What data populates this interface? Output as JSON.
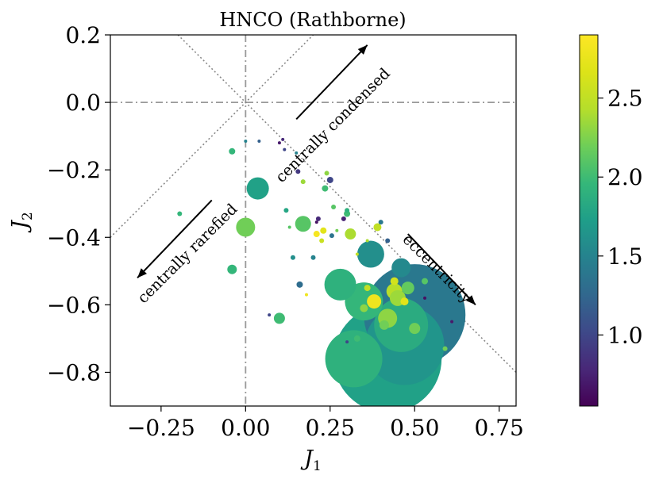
{
  "chart_data": {
    "type": "scatter",
    "title": "HNCO (Rathborne)",
    "xlabel": "J",
    "xlabel_sub": "1",
    "ylabel": "J",
    "ylabel_sub": "2",
    "xlim": [
      -0.4,
      0.8
    ],
    "ylim": [
      -0.9,
      0.2
    ],
    "x_ticks": [
      -0.25,
      0.0,
      0.25,
      0.5,
      0.75
    ],
    "x_tick_labels": [
      "−0.25",
      "0.00",
      "0.25",
      "0.50",
      "0.75"
    ],
    "y_ticks": [
      0.2,
      0.0,
      -0.2,
      -0.4,
      -0.6,
      -0.8
    ],
    "y_tick_labels": [
      "0.2",
      "0.0",
      "−0.2",
      "−0.4",
      "−0.6",
      "−0.8"
    ],
    "colorbar": {
      "range": [
        0.55,
        2.9
      ],
      "ticks": [
        1.0,
        1.5,
        2.0,
        2.5
      ],
      "tick_labels": [
        "1.0",
        "1.5",
        "2.0",
        "2.5"
      ]
    },
    "annotations": [
      {
        "text": "centrally condensed",
        "name": "annotation-centrally-condensed"
      },
      {
        "text": "centrally rarefied",
        "name": "annotation-centrally-rarefied"
      },
      {
        "text": "eccentricity",
        "name": "annotation-eccentricity"
      }
    ],
    "points": [
      {
        "x": 0.42,
        "y": -0.76,
        "size": 68,
        "color": 1.75
      },
      {
        "x": 0.5,
        "y": -0.63,
        "size": 64,
        "color": 1.4
      },
      {
        "x": 0.47,
        "y": -0.72,
        "size": 50,
        "color": 1.65
      },
      {
        "x": 0.32,
        "y": -0.76,
        "size": 36,
        "color": 1.9
      },
      {
        "x": 0.46,
        "y": -0.66,
        "size": 34,
        "color": 1.85
      },
      {
        "x": 0.35,
        "y": -0.59,
        "size": 24,
        "color": 1.95
      },
      {
        "x": 0.28,
        "y": -0.54,
        "size": 20,
        "color": 1.9
      },
      {
        "x": 0.37,
        "y": -0.45,
        "size": 17,
        "color": 1.6
      },
      {
        "x": 0.46,
        "y": -0.49,
        "size": 12,
        "color": 1.55
      },
      {
        "x": 0.42,
        "y": -0.64,
        "size": 12,
        "color": 2.3
      },
      {
        "x": 0.036,
        "y": -0.255,
        "size": 14,
        "color": 1.75
      },
      {
        "x": 0.0,
        "y": -0.37,
        "size": 12,
        "color": 2.2
      },
      {
        "x": 0.17,
        "y": -0.36,
        "size": 10,
        "color": 2.1
      },
      {
        "x": 0.44,
        "y": -0.56,
        "size": 10,
        "color": 2.45
      },
      {
        "x": 0.45,
        "y": -0.58,
        "size": 10,
        "color": 2.35
      },
      {
        "x": 0.48,
        "y": -0.55,
        "size": 8,
        "color": 2.15
      },
      {
        "x": 0.38,
        "y": -0.59,
        "size": 9,
        "color": 2.8
      },
      {
        "x": 0.31,
        "y": -0.39,
        "size": 7,
        "color": 2.4
      },
      {
        "x": 0.1,
        "y": -0.64,
        "size": 7,
        "color": 2.0
      },
      {
        "x": -0.04,
        "y": -0.495,
        "size": 6,
        "color": 1.95
      },
      {
        "x": 0.41,
        "y": -0.66,
        "size": 6,
        "color": 2.2
      },
      {
        "x": 0.39,
        "y": -0.37,
        "size": 5,
        "color": 2.5
      },
      {
        "x": 0.5,
        "y": -0.67,
        "size": 7,
        "color": 2.2
      },
      {
        "x": 0.44,
        "y": -0.53,
        "size": 5,
        "color": 2.6
      },
      {
        "x": 0.35,
        "y": -0.61,
        "size": 5,
        "color": 2.3
      },
      {
        "x": 0.53,
        "y": -0.53,
        "size": 4,
        "color": 2.1
      },
      {
        "x": 0.33,
        "y": -0.7,
        "size": 4,
        "color": 2.0
      },
      {
        "x": 0.59,
        "y": -0.73,
        "size": 3,
        "color": 2.2
      },
      {
        "x": 0.47,
        "y": -0.59,
        "size": 5,
        "color": 2.7
      },
      {
        "x": 0.36,
        "y": -0.55,
        "size": 4,
        "color": 2.5
      },
      {
        "x": 0.3,
        "y": -0.33,
        "size": 4,
        "color": 2.0
      },
      {
        "x": 0.21,
        "y": -0.39,
        "size": 4,
        "color": 2.85
      },
      {
        "x": 0.23,
        "y": -0.38,
        "size": 4,
        "color": 2.7
      },
      {
        "x": 0.225,
        "y": -0.41,
        "size": 3,
        "color": 2.55
      },
      {
        "x": 0.2,
        "y": -0.46,
        "size": 3,
        "color": 1.5
      },
      {
        "x": 0.16,
        "y": -0.54,
        "size": 4,
        "color": 1.3
      },
      {
        "x": 0.17,
        "y": -0.235,
        "size": 3,
        "color": 2.35
      },
      {
        "x": 0.235,
        "y": -0.255,
        "size": 4,
        "color": 2.0
      },
      {
        "x": 0.24,
        "y": -0.21,
        "size": 3,
        "color": 2.3
      },
      {
        "x": 0.25,
        "y": -0.23,
        "size": 4,
        "color": 1.0
      },
      {
        "x": 0.3,
        "y": -0.32,
        "size": 3,
        "color": 1.9
      },
      {
        "x": 0.29,
        "y": -0.345,
        "size": 3,
        "color": 0.75
      },
      {
        "x": 0.215,
        "y": -0.345,
        "size": 3,
        "color": 0.8
      },
      {
        "x": 0.26,
        "y": -0.31,
        "size": 3,
        "color": 2.1
      },
      {
        "x": 0.4,
        "y": -0.355,
        "size": 3,
        "color": 1.4
      },
      {
        "x": 0.11,
        "y": -0.11,
        "size": 2,
        "color": 0.8
      },
      {
        "x": 0.1,
        "y": -0.12,
        "size": 2,
        "color": 0.7
      },
      {
        "x": 0.04,
        "y": -0.115,
        "size": 2,
        "color": 1.2
      },
      {
        "x": 0.0,
        "y": -0.115,
        "size": 2,
        "color": 1.5
      },
      {
        "x": 0.155,
        "y": -0.205,
        "size": 3,
        "color": 0.9
      },
      {
        "x": 0.15,
        "y": -0.15,
        "size": 2,
        "color": 1.5
      },
      {
        "x": -0.04,
        "y": -0.145,
        "size": 4,
        "color": 1.95
      },
      {
        "x": -0.195,
        "y": -0.33,
        "size": 3,
        "color": 1.95
      },
      {
        "x": 0.115,
        "y": -0.14,
        "size": 2,
        "color": 1.0
      },
      {
        "x": 0.14,
        "y": -0.46,
        "size": 3,
        "color": 1.6
      },
      {
        "x": 0.13,
        "y": -0.37,
        "size": 2,
        "color": 2.1
      },
      {
        "x": 0.12,
        "y": -0.32,
        "size": 3,
        "color": 1.8
      },
      {
        "x": 0.07,
        "y": -0.63,
        "size": 2,
        "color": 1.0
      },
      {
        "x": 0.18,
        "y": -0.57,
        "size": 2,
        "color": 2.8
      },
      {
        "x": 0.42,
        "y": -0.41,
        "size": 3,
        "color": 1.2
      },
      {
        "x": 0.255,
        "y": -0.395,
        "size": 3,
        "color": 1.35
      },
      {
        "x": 0.27,
        "y": -0.38,
        "size": 2,
        "color": 2.2
      },
      {
        "x": 0.53,
        "y": -0.58,
        "size": 2,
        "color": 0.65
      },
      {
        "x": 0.61,
        "y": -0.65,
        "size": 2,
        "color": 0.7
      },
      {
        "x": 0.3,
        "y": -0.71,
        "size": 2,
        "color": 1.0
      },
      {
        "x": 0.21,
        "y": -0.355,
        "size": 2,
        "color": 0.65
      },
      {
        "x": 0.36,
        "y": -0.41,
        "size": 2,
        "color": 2.4
      },
      {
        "x": 0.33,
        "y": -0.45,
        "size": 2,
        "color": 2.5
      }
    ]
  }
}
